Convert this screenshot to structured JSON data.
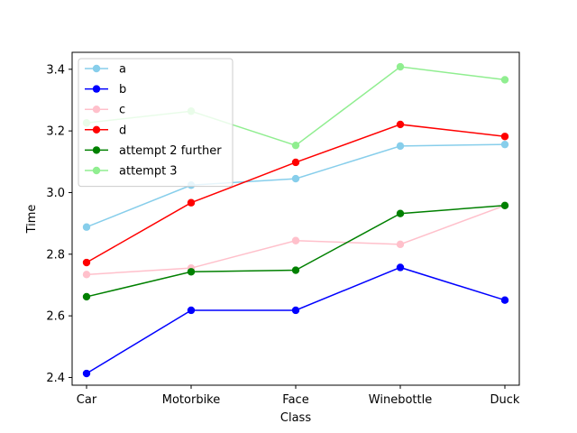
{
  "chart_data": {
    "type": "line",
    "title": "",
    "xlabel": "Class",
    "ylabel": "Time",
    "categories": [
      "Car",
      "Motorbike",
      "Face",
      "Winebottle",
      "Duck"
    ],
    "ylim": [
      2.375,
      3.455
    ],
    "yticks": [
      "2.4",
      "2.6",
      "2.8",
      "3.0",
      "3.2",
      "3.4"
    ],
    "grid": false,
    "legend_position": "upper-left",
    "series": [
      {
        "name": "a",
        "color": "#87ceeb",
        "values": [
          2.888,
          3.024,
          3.045,
          3.151,
          3.156
        ]
      },
      {
        "name": "b",
        "color": "#0000ff",
        "values": [
          2.413,
          2.618,
          2.618,
          2.757,
          2.651
        ]
      },
      {
        "name": "c",
        "color": "#ffc0cb",
        "values": [
          2.734,
          2.755,
          2.844,
          2.832,
          2.958
        ]
      },
      {
        "name": "d",
        "color": "#ff0000",
        "values": [
          2.773,
          2.967,
          3.098,
          3.221,
          3.182
        ]
      },
      {
        "name": "attempt 2 further",
        "color": "#008000",
        "values": [
          2.662,
          2.743,
          2.748,
          2.932,
          2.958
        ]
      },
      {
        "name": "attempt 3",
        "color": "#90ee90",
        "values": [
          3.226,
          3.264,
          3.153,
          3.408,
          3.366
        ]
      }
    ]
  }
}
